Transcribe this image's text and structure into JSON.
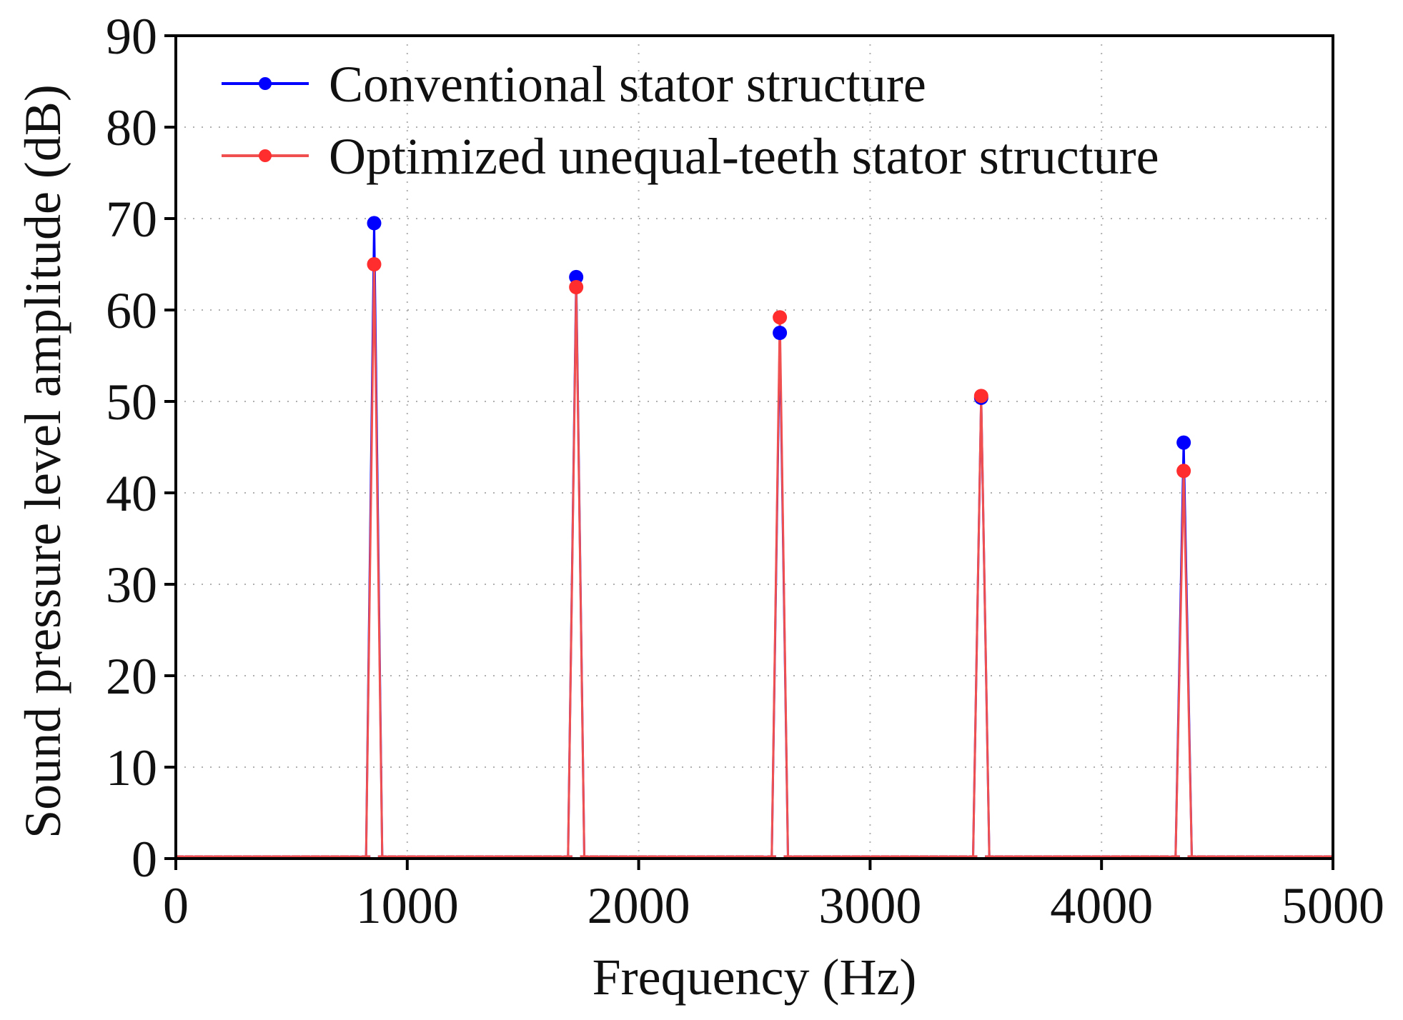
{
  "chart_data": {
    "type": "line",
    "title": "",
    "xlabel": "Frequency (Hz)",
    "ylabel": "Sound pressure level amplitude (dB)",
    "xlim": [
      0,
      5000
    ],
    "ylim": [
      0,
      90
    ],
    "xticks": [
      0,
      1000,
      2000,
      3000,
      4000,
      5000
    ],
    "yticks": [
      0,
      10,
      20,
      30,
      40,
      50,
      60,
      70,
      80,
      90
    ],
    "grid": true,
    "legend_position": "top-left",
    "peaks_x": [
      857,
      1730,
      2610,
      3480,
      4355
    ],
    "series": [
      {
        "name": "Conventional stator structure",
        "color": "#0000ff",
        "peak_values": [
          69.5,
          63.6,
          57.5,
          50.4,
          45.5
        ]
      },
      {
        "name": "Optimized unequal-teeth stator structure",
        "color": "#ff2d2d",
        "peak_values": [
          65.0,
          62.5,
          59.2,
          50.6,
          42.4
        ]
      }
    ],
    "baseline_value": 0.2
  }
}
